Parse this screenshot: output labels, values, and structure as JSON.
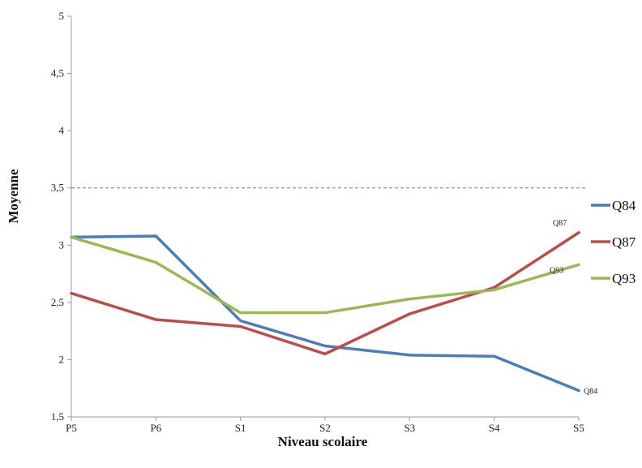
{
  "chart_data": {
    "type": "line",
    "xlabel": "Niveau scolaire",
    "ylabel": "Moyenne",
    "categories": [
      "P5",
      "P6",
      "S1",
      "S2",
      "S3",
      "S4",
      "S5"
    ],
    "ylim": [
      1.5,
      5
    ],
    "yticks": [
      1.5,
      2,
      2.5,
      3,
      3.5,
      4,
      4.5,
      5
    ],
    "ytick_labels": [
      "1,5",
      "2",
      "2,5",
      "3",
      "3,5",
      "4",
      "4,5",
      "5"
    ],
    "reference_line": 3.5,
    "grid": false,
    "legend_position": "right",
    "series": [
      {
        "name": "Q84",
        "color": "#4a7ebb",
        "values": [
          3.07,
          3.08,
          2.34,
          2.12,
          2.04,
          2.03,
          1.73
        ],
        "end_label": "Q84"
      },
      {
        "name": "Q87",
        "color": "#be4b48",
        "values": [
          2.58,
          2.35,
          2.29,
          2.05,
          2.4,
          2.63,
          3.11
        ],
        "end_label": "Q87"
      },
      {
        "name": "Q93",
        "color": "#98b954",
        "values": [
          3.07,
          2.85,
          2.41,
          2.41,
          2.53,
          2.61,
          2.83
        ],
        "end_label": "Q93"
      }
    ]
  }
}
